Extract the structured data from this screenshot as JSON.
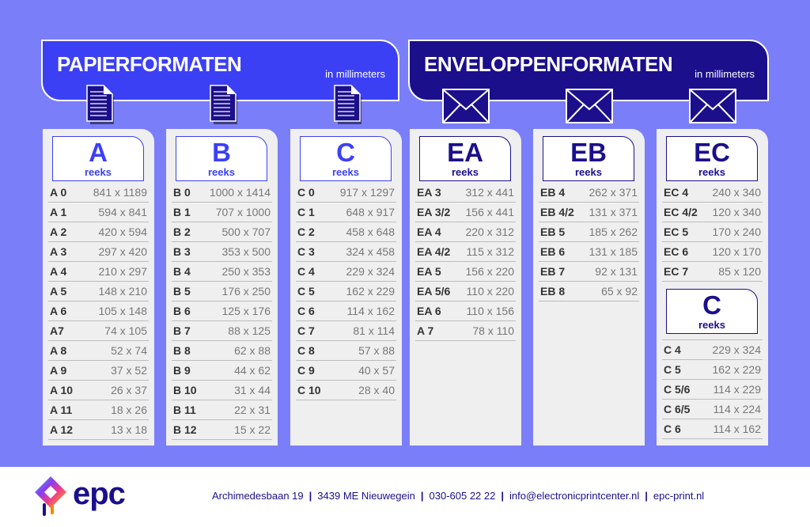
{
  "paper_banner": {
    "title": "PAPIERFORMATEN",
    "unit": "in millimeters",
    "color": "#3c40f5"
  },
  "envelope_banner": {
    "title": "ENVELOPPENFORMATEN",
    "unit": "in millimeters",
    "color": "#1b0f8c"
  },
  "columns": [
    {
      "letter": "A",
      "label": "reeks",
      "kind": "paper",
      "rows": [
        [
          "A 0",
          "841 x 1189"
        ],
        [
          "A 1",
          "594 x 841"
        ],
        [
          "A 2",
          "420 x 594"
        ],
        [
          "A 3",
          "297 x 420"
        ],
        [
          "A 4",
          "210 x 297"
        ],
        [
          "A 5",
          "148 x 210"
        ],
        [
          "A 6",
          "105 x 148"
        ],
        [
          "A7",
          "74 x 105"
        ],
        [
          "A 8",
          "52 x 74"
        ],
        [
          "A 9",
          "37 x 52"
        ],
        [
          "A 10",
          "26 x 37"
        ],
        [
          "A 11",
          "18 x 26"
        ],
        [
          "A 12",
          "13 x 18"
        ]
      ]
    },
    {
      "letter": "B",
      "label": "reeks",
      "kind": "paper",
      "rows": [
        [
          "B 0",
          "1000 x 1414"
        ],
        [
          "B 1",
          "707 x 1000"
        ],
        [
          "B 2",
          "500 x 707"
        ],
        [
          "B 3",
          "353 x 500"
        ],
        [
          "B 4",
          "250 x 353"
        ],
        [
          "B 5",
          "176 x 250"
        ],
        [
          "B 6",
          "125 x 176"
        ],
        [
          "B 7",
          "88 x 125"
        ],
        [
          "B 8",
          "62 x 88"
        ],
        [
          "B 9",
          "44 x 62"
        ],
        [
          "B 10",
          "31 x 44"
        ],
        [
          "B 11",
          "22 x 31"
        ],
        [
          "B 12",
          "15 x 22"
        ]
      ]
    },
    {
      "letter": "C",
      "label": "reeks",
      "kind": "paper",
      "rows": [
        [
          "C 0",
          "917 x 1297"
        ],
        [
          "C 1",
          "648 x 917"
        ],
        [
          "C 2",
          "458 x 648"
        ],
        [
          "C 3",
          "324 x 458"
        ],
        [
          "C 4",
          "229 x 324"
        ],
        [
          "C 5",
          "162 x 229"
        ],
        [
          "C 6",
          "114 x 162"
        ],
        [
          "C 7",
          "81 x 114"
        ],
        [
          "C 8",
          "57 x 88"
        ],
        [
          "C 9",
          "40 x 57"
        ],
        [
          "C 10",
          "28 x 40"
        ]
      ]
    },
    {
      "letter": "EA",
      "label": "reeks",
      "kind": "env",
      "rows": [
        [
          "EA 3",
          "312 x 441"
        ],
        [
          "EA 3/2",
          "156 x 441"
        ],
        [
          "EA 4",
          "220 x 312"
        ],
        [
          "EA 4/2",
          "115 x 312"
        ],
        [
          "EA 5",
          "156 x 220"
        ],
        [
          "EA 5/6",
          "110 x 220"
        ],
        [
          "EA 6",
          "110 x 156"
        ],
        [
          "A 7",
          "78 x 110"
        ]
      ]
    },
    {
      "letter": "EB",
      "label": "reeks",
      "kind": "env",
      "rows": [
        [
          "EB 4",
          "262 x 371"
        ],
        [
          "EB 4/2",
          "131 x 371"
        ],
        [
          "EB 5",
          "185 x 262"
        ],
        [
          "EB 6",
          "131 x 185"
        ],
        [
          "EB 7",
          "92 x 131"
        ],
        [
          "EB 8",
          "65 x 92"
        ]
      ]
    },
    {
      "letter": "EC",
      "label": "reeks",
      "kind": "env",
      "rows": [
        [
          "EC 4",
          "240 x 340"
        ],
        [
          "EC 4/2",
          "120 x 340"
        ],
        [
          "EC 5",
          "170 x 240"
        ],
        [
          "EC 6",
          "120 x 170"
        ],
        [
          "EC 7",
          "85 x 120"
        ]
      ],
      "sub": {
        "letter": "C",
        "label": "reeks",
        "rows": [
          [
            "C 4",
            "229 x 324"
          ],
          [
            "C 5",
            "162 x 229"
          ],
          [
            "C 5/6",
            "114 x 229"
          ],
          [
            "C 6/5",
            "114 x 224"
          ],
          [
            "C 6",
            "114 x 162"
          ]
        ]
      }
    }
  ],
  "footer": {
    "logo": "epc",
    "address": "Archimedesbaan 19",
    "city": "3439 ME Nieuwegein",
    "phone": "030-605 22 22",
    "email": "info@electronicprintcenter.nl",
    "web": "epc-print.nl",
    "separator": "|"
  }
}
